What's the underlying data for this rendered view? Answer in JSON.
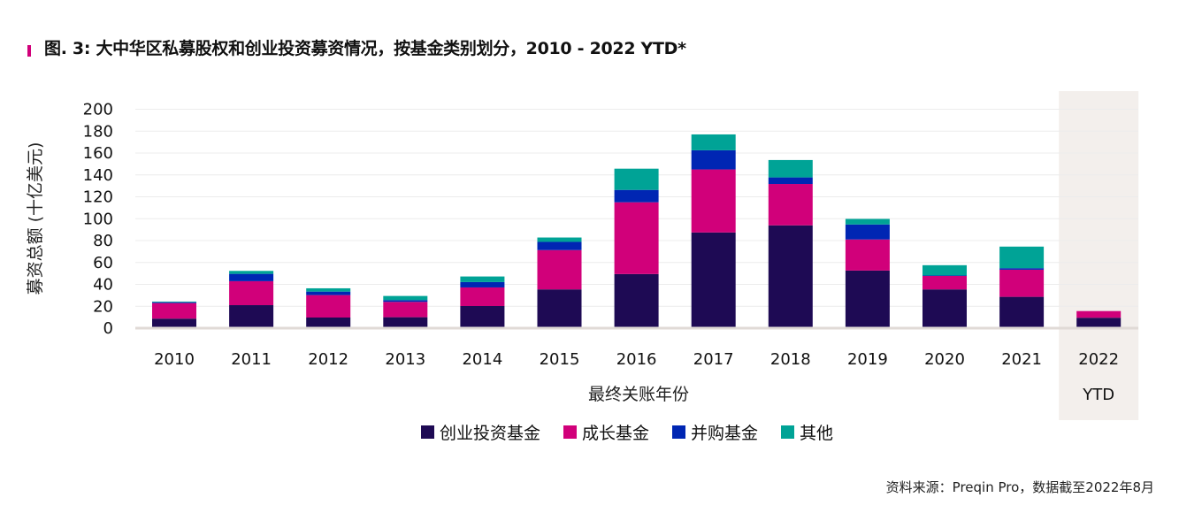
{
  "title": "图. 3: 大中华区私募股权和创业投资募资情况，按基金类别划分，2010 - 2022 YTD*",
  "source": "资料来源：Preqin Pro，数据截至2022年8月",
  "colors": {
    "accent": "#d1007a",
    "venture": "#1e0a54",
    "growth": "#d1007a",
    "buyout": "#0026b3",
    "other": "#00a396",
    "ytd_band": "#f3efec",
    "baseline": "#e0dad6",
    "grid": "#ececec"
  },
  "chart_data": {
    "type": "bar",
    "stacked": true,
    "title": "图. 3: 大中华区私募股权和创业投资募资情况，按基金类别划分，2010 - 2022 YTD*",
    "xlabel": "最终关账年份",
    "ylabel": "募资总额 (十亿美元)",
    "ylim": [
      0,
      200
    ],
    "yticks": [
      0,
      20,
      40,
      60,
      80,
      100,
      120,
      140,
      160,
      180,
      200
    ],
    "grid": true,
    "legend_position": "bottom",
    "categories": [
      "2010",
      "2011",
      "2012",
      "2013",
      "2014",
      "2015",
      "2016",
      "2017",
      "2018",
      "2019",
      "2020",
      "2021",
      "2022 YTD"
    ],
    "category_labels": [
      [
        "2010"
      ],
      [
        "2011"
      ],
      [
        "2012"
      ],
      [
        "2013"
      ],
      [
        "2014"
      ],
      [
        "2015"
      ],
      [
        "2016"
      ],
      [
        "2017"
      ],
      [
        "2018"
      ],
      [
        "2019"
      ],
      [
        "2020"
      ],
      [
        "2021"
      ],
      [
        "2022",
        "YTD"
      ]
    ],
    "highlighted_category": "2022 YTD",
    "series": [
      {
        "name": "创业投资基金",
        "key": "venture",
        "values": [
          8.7,
          21,
          9.7,
          10,
          20.2,
          35.4,
          49.4,
          87.4,
          93.9,
          52.6,
          35.4,
          28.6,
          9.5
        ]
      },
      {
        "name": "成长基金",
        "key": "growth",
        "values": [
          14.2,
          21.9,
          20.5,
          14,
          17,
          35.9,
          65.6,
          57.6,
          37.8,
          28.4,
          12.4,
          24.8,
          6.1
        ]
      },
      {
        "name": "并购基金",
        "key": "buyout",
        "values": [
          0.8,
          6.7,
          3.2,
          1.6,
          4.9,
          7.5,
          11.3,
          17.5,
          6,
          13.7,
          0.3,
          1.4,
          0
        ]
      },
      {
        "name": "其他",
        "key": "other",
        "values": [
          0.6,
          2.7,
          3,
          3.8,
          5.1,
          4,
          19.4,
          14.5,
          15.9,
          5.1,
          9.4,
          19.7,
          0
        ]
      }
    ]
  }
}
